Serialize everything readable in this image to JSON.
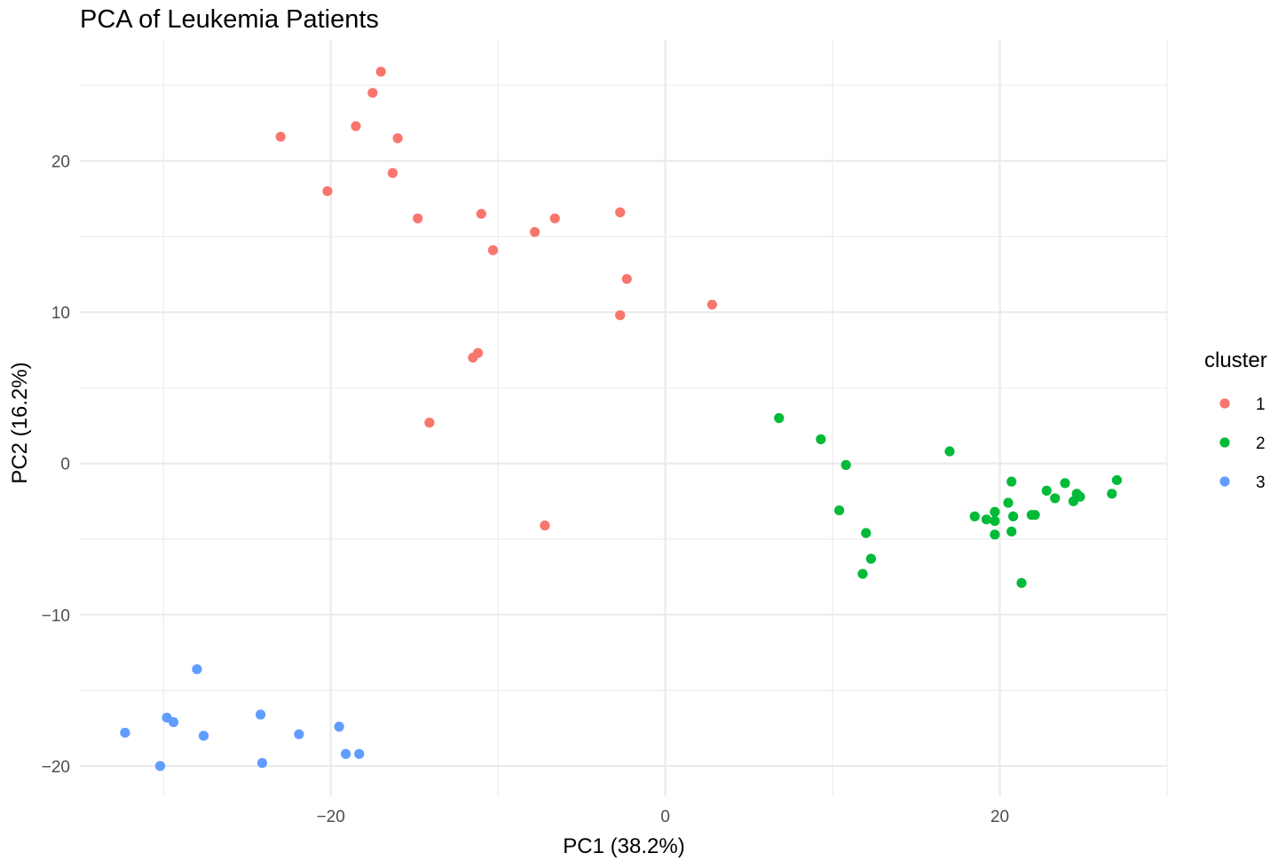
{
  "chart_data": {
    "type": "scatter",
    "title": "PCA of Leukemia Patients",
    "xlabel": "PC1 (38.2%)",
    "ylabel": "PC2 (16.2%)",
    "xlim": [
      -35,
      30
    ],
    "ylim": [
      -22,
      28
    ],
    "x_ticks": [
      -20,
      0,
      20
    ],
    "x_tick_labels": [
      "−20",
      "0",
      "20"
    ],
    "y_ticks": [
      -20,
      -10,
      0,
      10,
      20
    ],
    "y_tick_labels": [
      "−20",
      "−10",
      "0",
      "10",
      "20"
    ],
    "grid": true,
    "legend": {
      "title": "cluster",
      "position": "right"
    },
    "series": [
      {
        "name": "1",
        "color": "#F8766D",
        "points": [
          [
            -17.0,
            25.9
          ],
          [
            -17.5,
            24.5
          ],
          [
            -18.5,
            22.3
          ],
          [
            -16.0,
            21.5
          ],
          [
            -23.0,
            21.6
          ],
          [
            -16.3,
            19.2
          ],
          [
            -20.2,
            18.0
          ],
          [
            -14.8,
            16.2
          ],
          [
            -11.0,
            16.5
          ],
          [
            -6.6,
            16.2
          ],
          [
            -2.7,
            16.6
          ],
          [
            -7.8,
            15.3
          ],
          [
            -10.3,
            14.1
          ],
          [
            -2.3,
            12.2
          ],
          [
            2.8,
            10.5
          ],
          [
            -2.7,
            9.8
          ],
          [
            -11.2,
            7.3
          ],
          [
            -11.5,
            7.0
          ],
          [
            -14.1,
            2.7
          ],
          [
            -7.2,
            -4.1
          ]
        ]
      },
      {
        "name": "2",
        "color": "#00BA38",
        "points": [
          [
            6.8,
            3.0
          ],
          [
            9.3,
            1.6
          ],
          [
            10.8,
            -0.1
          ],
          [
            17.0,
            0.8
          ],
          [
            20.7,
            -1.2
          ],
          [
            27.0,
            -1.1
          ],
          [
            23.9,
            -1.3
          ],
          [
            22.8,
            -1.8
          ],
          [
            24.6,
            -2.0
          ],
          [
            24.8,
            -2.2
          ],
          [
            26.7,
            -2.0
          ],
          [
            23.3,
            -2.3
          ],
          [
            24.4,
            -2.5
          ],
          [
            20.5,
            -2.6
          ],
          [
            10.4,
            -3.1
          ],
          [
            18.5,
            -3.5
          ],
          [
            21.9,
            -3.4
          ],
          [
            22.1,
            -3.4
          ],
          [
            20.8,
            -3.5
          ],
          [
            19.7,
            -3.2
          ],
          [
            19.2,
            -3.7
          ],
          [
            19.7,
            -3.8
          ],
          [
            20.7,
            -4.5
          ],
          [
            19.7,
            -4.7
          ],
          [
            12.0,
            -4.6
          ],
          [
            12.3,
            -6.3
          ],
          [
            11.8,
            -7.3
          ],
          [
            21.3,
            -7.9
          ]
        ]
      },
      {
        "name": "3",
        "color": "#619CFF",
        "points": [
          [
            -28.0,
            -13.6
          ],
          [
            -24.2,
            -16.6
          ],
          [
            -29.8,
            -16.8
          ],
          [
            -29.4,
            -17.1
          ],
          [
            -19.5,
            -17.4
          ],
          [
            -32.3,
            -17.8
          ],
          [
            -27.6,
            -18.0
          ],
          [
            -21.9,
            -17.9
          ],
          [
            -19.1,
            -19.2
          ],
          [
            -18.3,
            -19.2
          ],
          [
            -24.1,
            -19.8
          ],
          [
            -30.2,
            -20.0
          ]
        ]
      }
    ]
  }
}
